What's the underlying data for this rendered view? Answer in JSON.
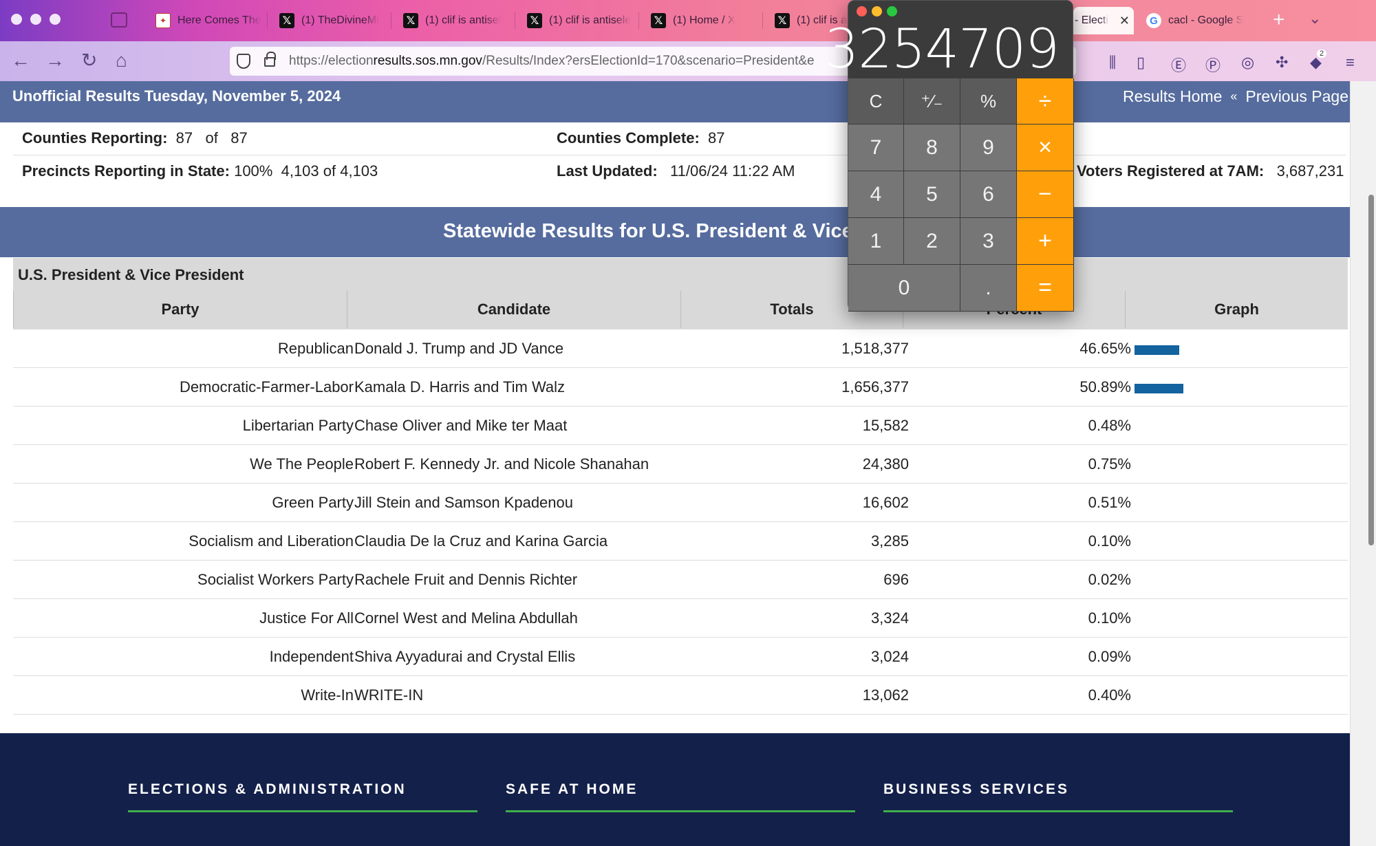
{
  "browser": {
    "tabs": [
      {
        "title": "Here Comes The",
        "favicon": "news-favicon"
      },
      {
        "title": "(1) TheDivineMi",
        "favicon": "x-favicon"
      },
      {
        "title": "(1) clif is antisel",
        "favicon": "x-favicon"
      },
      {
        "title": "(1) clif is antisele",
        "favicon": "x-favicon"
      },
      {
        "title": "(1) Home / X",
        "favicon": "x-favicon"
      },
      {
        "title": "(1) clif is a",
        "favicon": "x-favicon"
      },
      {
        "title": "- Electi",
        "favicon": "none",
        "active": true
      },
      {
        "title": "cacl - Google S",
        "favicon": "google-favicon"
      }
    ],
    "url_prefix": "https://election",
    "url_domain": "results.sos.mn.gov",
    "url_path": "/Results/Index?ersElectionId=170&scenario=President&e",
    "extension_badge": "2"
  },
  "page": {
    "header_left": "Unofficial Results Tuesday, November 5, 2024",
    "header_links": [
      "Results Home",
      "Previous Page"
    ],
    "header_link_sep": "«",
    "stats": {
      "counties_reporting_label": "Counties Reporting:",
      "counties_reporting_value": "87",
      "counties_of": "of",
      "counties_total": "87",
      "counties_complete_label": "Counties Complete:",
      "counties_complete_value": "87",
      "precincts_label": "Precincts Reporting in State:",
      "precincts_pct": "100%",
      "precincts_value": "4,103 of 4,103",
      "last_updated_label": "Last Updated:",
      "last_updated_value": "11/06/24 11:22 AM",
      "voters_label": "Voters Registered at 7AM:",
      "voters_value": "3,687,231"
    },
    "section_title": "Statewide Results for U.S. President & Vice Pr",
    "race_title": "U.S. President & Vice President",
    "columns": [
      "Party",
      "Candidate",
      "Totals",
      "Percent",
      "Graph"
    ],
    "results": [
      {
        "party": "Republican",
        "candidate": "Donald J. Trump and JD Vance",
        "total": "1,518,377",
        "percent": "46.65%",
        "share": 0.4665
      },
      {
        "party": "Democratic-Farmer-Labor",
        "candidate": "Kamala D. Harris and Tim Walz",
        "total": "1,656,377",
        "percent": "50.89%",
        "share": 0.5089
      },
      {
        "party": "Libertarian Party",
        "candidate": "Chase Oliver and Mike ter Maat",
        "total": "15,582",
        "percent": "0.48%",
        "share": 0.0048
      },
      {
        "party": "We The People",
        "candidate": "Robert F. Kennedy Jr. and Nicole Shanahan",
        "total": "24,380",
        "percent": "0.75%",
        "share": 0.0075
      },
      {
        "party": "Green Party",
        "candidate": "Jill Stein and Samson Kpadenou",
        "total": "16,602",
        "percent": "0.51%",
        "share": 0.0051
      },
      {
        "party": "Socialism and Liberation",
        "candidate": "Claudia De la Cruz and Karina Garcia",
        "total": "3,285",
        "percent": "0.10%",
        "share": 0.001
      },
      {
        "party": "Socialist Workers Party",
        "candidate": "Rachele Fruit and Dennis Richter",
        "total": "696",
        "percent": "0.02%",
        "share": 0.0002
      },
      {
        "party": "Justice For All",
        "candidate": "Cornel West and Melina Abdullah",
        "total": "3,324",
        "percent": "0.10%",
        "share": 0.001
      },
      {
        "party": "Independent",
        "candidate": "Shiva Ayyadurai and Crystal Ellis",
        "total": "3,024",
        "percent": "0.09%",
        "share": 0.0009
      },
      {
        "party": "Write-In",
        "candidate": "WRITE-IN",
        "total": "13,062",
        "percent": "0.40%",
        "share": 0.004
      }
    ],
    "footer": [
      "ELECTIONS & ADMINISTRATION",
      "SAFE AT HOME",
      "BUSINESS SERVICES"
    ]
  },
  "calculator": {
    "display": "3254709",
    "keys": [
      "C",
      "⁺∕₋",
      "%",
      "÷",
      "7",
      "8",
      "9",
      "×",
      "4",
      "5",
      "6",
      "−",
      "1",
      "2",
      "3",
      "+",
      "0",
      ".",
      "="
    ]
  },
  "colors": {
    "header_bar": "#566c9e",
    "graph_bar": "#13639e",
    "footer_bg": "#13204a",
    "footer_accent": "#3fb04a",
    "calc_operator": "#ff9f0a"
  }
}
